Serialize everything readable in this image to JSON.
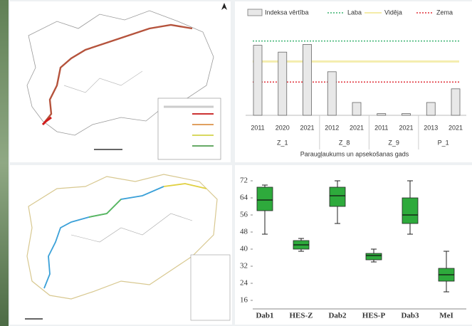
{
  "chart_data": [
    {
      "type": "bar",
      "series_name": "Indeksa vērtība",
      "color": "#e8e8e8",
      "groups": [
        {
          "label": "Z_1",
          "categories": [
            "2011",
            "2020",
            "2021"
          ],
          "values": [
            0.82,
            0.74,
            0.83
          ]
        },
        {
          "label": "Z_8",
          "categories": [
            "2012",
            "2021"
          ],
          "values": [
            0.51,
            0.15
          ]
        },
        {
          "label": "Z_9",
          "categories": [
            "2011",
            "2021"
          ],
          "values": [
            0.02,
            0.02
          ]
        },
        {
          "label": "P_1",
          "categories": [
            "2013",
            "2021"
          ],
          "values": [
            0.15,
            0.31
          ]
        }
      ],
      "reference_lines": [
        {
          "name": "Laba",
          "color": "#3cb371",
          "value": 0.87
        },
        {
          "name": "Vidēja",
          "color": "#f0e68c",
          "value": 0.63
        },
        {
          "name": "Zema",
          "color": "#e0303a",
          "value": 0.39
        }
      ],
      "xlabel": "Paraugļaukums un apsekošanas gads",
      "ylim": [
        0,
        1
      ]
    },
    {
      "type": "box",
      "categories": [
        "Dab1",
        "HES-Z",
        "Dab2",
        "HES-P",
        "Dab3",
        "MeI"
      ],
      "color": "#2eaa3c",
      "min": [
        47,
        39,
        52,
        34,
        47,
        20
      ],
      "q1": [
        58,
        40,
        60,
        35,
        52,
        25
      ],
      "median": [
        63,
        42,
        65,
        37,
        56,
        28
      ],
      "q3": [
        69,
        44,
        69,
        38,
        64,
        31
      ],
      "max": [
        70,
        45,
        72,
        40,
        72,
        39
      ],
      "ylim": [
        12,
        76
      ],
      "yticks": [
        16,
        24,
        32,
        40,
        48,
        56,
        64,
        72
      ],
      "grid": false
    }
  ]
}
